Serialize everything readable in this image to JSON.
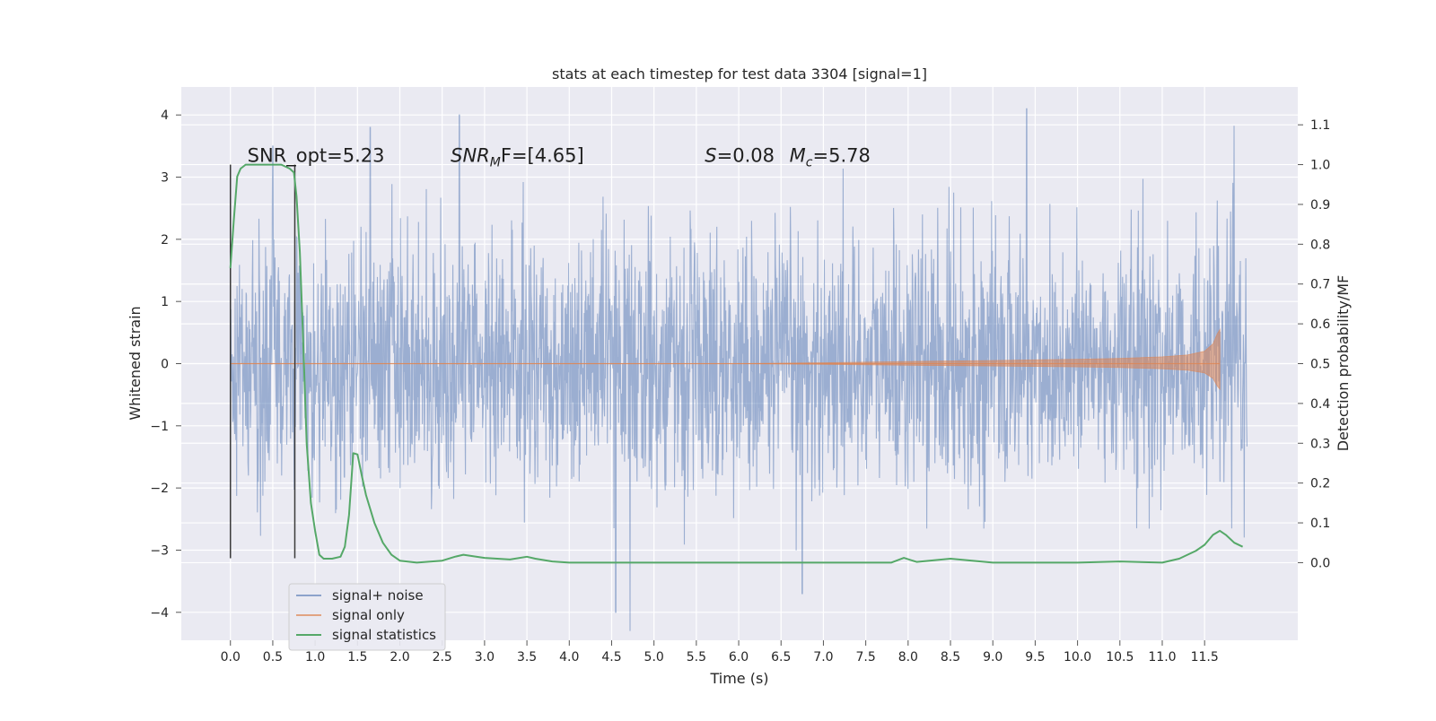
{
  "chart_data": {
    "type": "line",
    "title": "stats at each timestep for test data 3304 [signal=1]",
    "xlabel": "Time (s)",
    "ylabel_left": "Whitened strain",
    "ylabel_right": "Detection probability/MF",
    "xlim": [
      -0.58,
      12.6
    ],
    "ylim_left": [
      -4.45,
      4.45
    ],
    "ylim_right": [
      -0.195,
      1.195
    ],
    "x_ticks": [
      "0.0",
      "0.5",
      "1.0",
      "1.5",
      "2.0",
      "2.5",
      "3.0",
      "3.5",
      "4.0",
      "4.5",
      "5.0",
      "5.5",
      "6.0",
      "6.5",
      "7.0",
      "7.5",
      "8.0",
      "8.5",
      "9.0",
      "9.5",
      "10.0",
      "10.5",
      "11.0",
      "11.5"
    ],
    "y_ticks_left": [
      "4",
      "3",
      "2",
      "1",
      "0",
      "−1",
      "−2",
      "−3",
      "−4"
    ],
    "y_ticks_right": [
      "1.1",
      "1.0",
      "0.9",
      "0.8",
      "0.7",
      "0.6",
      "0.5",
      "0.4",
      "0.3",
      "0.2",
      "0.1",
      "0.0"
    ],
    "grid": true,
    "legend_position": "lower-left",
    "colors": {
      "signal_noise": "#4c72b0",
      "signal_only": "#dd8452",
      "statistics": "#55a868",
      "background": "#eaeaf2",
      "marker": "#3a3a3a"
    },
    "series": [
      {
        "name": "signal+ noise",
        "axis": "left",
        "description_values": {
          "x_range": [
            0.0,
            12.0
          ],
          "approx_band": [
            -2.0,
            2.0
          ],
          "peaks": [
            [
              2.7,
              4.0
            ],
            [
              9.4,
              4.1
            ],
            [
              4.55,
              -4.0
            ],
            [
              6.75,
              -3.7
            ],
            [
              1.65,
              3.8
            ],
            [
              0.5,
              3.5
            ]
          ]
        }
      },
      {
        "name": "signal only",
        "axis": "left",
        "envelope": {
          "x": [
            0.0,
            6.0,
            7.0,
            8.0,
            9.0,
            10.0,
            10.5,
            11.0,
            11.3,
            11.5,
            11.6,
            11.65,
            11.68
          ],
          "amplitude": [
            0.0,
            0.0,
            0.015,
            0.035,
            0.05,
            0.07,
            0.085,
            0.11,
            0.14,
            0.2,
            0.32,
            0.48,
            0.55
          ]
        }
      },
      {
        "name": "signal statistics",
        "axis": "right",
        "x": [
          0.0,
          0.04,
          0.08,
          0.12,
          0.18,
          0.25,
          0.35,
          0.5,
          0.6,
          0.7,
          0.75,
          0.78,
          0.82,
          0.86,
          0.9,
          0.95,
          1.0,
          1.05,
          1.1,
          1.2,
          1.3,
          1.35,
          1.4,
          1.45,
          1.5,
          1.55,
          1.6,
          1.7,
          1.8,
          1.9,
          2.0,
          2.2,
          2.5,
          2.65,
          2.75,
          2.9,
          3.0,
          3.3,
          3.5,
          3.6,
          3.8,
          4.0,
          5.0,
          6.0,
          7.0,
          7.8,
          7.95,
          8.1,
          8.5,
          9.0,
          10.0,
          10.5,
          11.0,
          11.2,
          11.4,
          11.5,
          11.6,
          11.68,
          11.75,
          11.85,
          11.95
        ],
        "y": [
          0.74,
          0.86,
          0.97,
          0.99,
          1.0,
          1.0,
          1.0,
          1.0,
          1.0,
          0.99,
          0.98,
          0.92,
          0.78,
          0.55,
          0.3,
          0.15,
          0.08,
          0.02,
          0.01,
          0.01,
          0.015,
          0.04,
          0.12,
          0.275,
          0.272,
          0.22,
          0.17,
          0.1,
          0.05,
          0.02,
          0.005,
          0.0,
          0.005,
          0.015,
          0.02,
          0.015,
          0.012,
          0.008,
          0.015,
          0.01,
          0.003,
          0.0,
          0.0,
          0.0,
          0.0,
          0.0,
          0.012,
          0.002,
          0.01,
          0.0,
          0.0,
          0.003,
          0.0,
          0.01,
          0.03,
          0.045,
          0.07,
          0.08,
          0.07,
          0.05,
          0.04
        ]
      }
    ],
    "vertical_markers_x": [
      0.0,
      0.76
    ],
    "annotations": [
      {
        "text_plain": "SNR_opt=5.23",
        "x": 0.2
      },
      {
        "var": "SNR",
        "sub": "M",
        "rest": "F=[4.65]",
        "x": 2.6
      },
      {
        "var": "S",
        "rest": "=0.08",
        "x": 5.6
      },
      {
        "var": "M",
        "sub": "c",
        "rest": "=5.78",
        "x": 6.6
      }
    ]
  },
  "legend": {
    "items": [
      {
        "label": "signal+ noise",
        "color": "#4c72b0"
      },
      {
        "label": "signal only",
        "color": "#dd8452"
      },
      {
        "label": "signal statistics",
        "color": "#55a868"
      }
    ]
  }
}
